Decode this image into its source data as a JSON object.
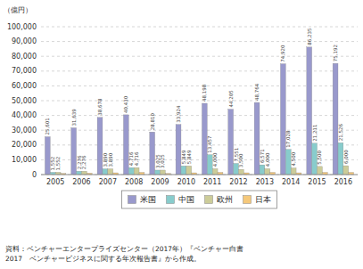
{
  "chart_data": {
    "type": "bar",
    "y_label": "（億円）",
    "categories": [
      "2005",
      "2006",
      "2007",
      "2008",
      "2009",
      "2010",
      "2011",
      "2012",
      "2013",
      "2014",
      "2015",
      "2016"
    ],
    "series": [
      {
        "name": "米国",
        "color": "#9999cc",
        "values": [
          25601,
          31639,
          38678,
          40430,
          28810,
          33924,
          48198,
          44205,
          48764,
          74920,
          86235,
          75192
        ],
        "value_labels": [
          "25,601",
          "31,639",
          "38,678",
          "40,430",
          "28,810",
          "33,924",
          "48,198",
          "44,205",
          "48,764",
          "74,920",
          "86,235",
          "75,192"
        ]
      },
      {
        "name": "中国",
        "color": "#88cccc",
        "values": [
          1552,
          2276,
          3890,
          4716,
          3025,
          5849,
          13457,
          7551,
          6571,
          17028,
          21211,
          21526
        ],
        "value_labels": [
          "1,552",
          "2,276",
          "3,890",
          "4,716",
          "3,025",
          "5,849",
          "13,457",
          "7,551",
          "6,571",
          "17,028",
          "21,211",
          "21,526"
        ]
      },
      {
        "name": "欧州",
        "color": "#cccc99",
        "values": [
          1552,
          2276,
          3890,
          4716,
          3025,
          5849,
          4000,
          3500,
          4000,
          4500,
          5500,
          6000
        ],
        "value_labels": [
          "1,552",
          "2,276",
          "3,890",
          "4,716",
          "3,025",
          "5,849",
          "4,000",
          "3,500",
          "4,000",
          "4,500",
          "5,500",
          "6,000"
        ]
      },
      {
        "name": "日本",
        "color": "#f5c87a",
        "values": [
          800,
          1000,
          1200,
          1500,
          800,
          1200,
          1500,
          1200,
          1500,
          1200,
          1500,
          1500
        ]
      }
    ],
    "ylim": [
      0,
      100000
    ],
    "yticks": [
      0,
      {
        "value": 10000,
        "label": "10,000"
      },
      {
        "value": 20000,
        "label": "20,000"
      },
      {
        "value": 30000,
        "label": "30,000"
      },
      {
        "value": 40000,
        "label": "40,000"
      },
      {
        "value": 50000,
        "label": "50,000"
      },
      {
        "value": 60000,
        "label": "60,000"
      },
      {
        "value": 70000,
        "label": "70,000"
      },
      {
        "value": 80000,
        "label": "80,000"
      },
      {
        "value": 90000,
        "label": "90,000"
      },
      {
        "value": 100000,
        "label": "100,000"
      }
    ],
    "grid": true,
    "legend": "bottom",
    "data_labels": true,
    "footnote": [
      "資料：ベンチャーエンタープライズセンター（2017年）『ベンチャー白書",
      "2017　ベンチャービジネスに関する年次報告書』から作成。"
    ]
  }
}
